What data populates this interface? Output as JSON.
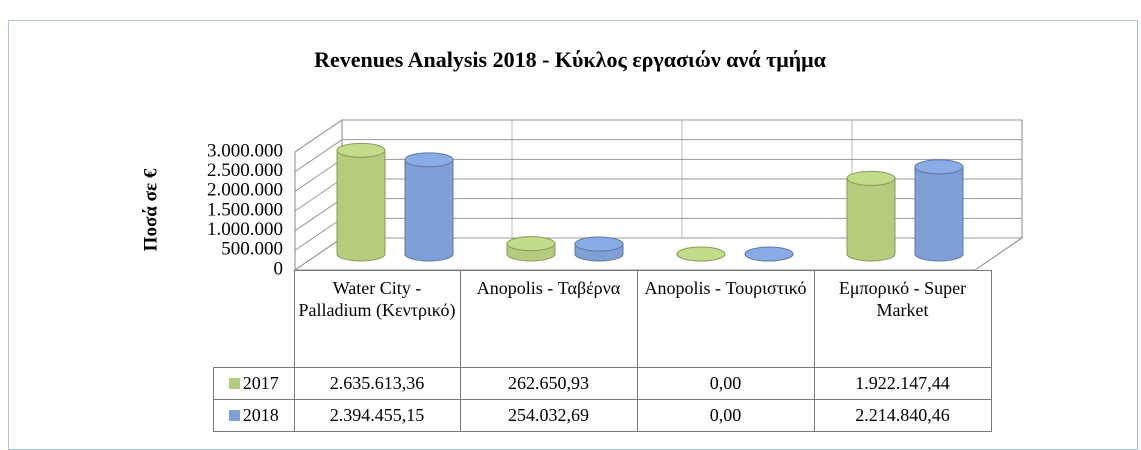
{
  "chart_data": {
    "type": "bar",
    "title": "Revenues Analysis 2018 - Κύκλος εργασιών ανά τμήμα",
    "ylabel": "Ποσά σε €",
    "categories": [
      "Water City - Palladium (Κεντρικό)",
      "Anopolis - Ταβέρνα",
      "Anopolis - Τουριστικό",
      "Εμπορικό - Super Market"
    ],
    "series": [
      {
        "name": "2017",
        "color": "#b5cc7f",
        "values": [
          2635613.36,
          262650.93,
          0,
          1922147.44
        ],
        "value_labels": [
          "2.635.613,36",
          "262.650,93",
          "0,00",
          "1.922.147,44"
        ]
      },
      {
        "name": "2018",
        "color": "#7f9fd6",
        "values": [
          2394455.15,
          254032.69,
          0,
          2214840.46
        ],
        "value_labels": [
          "2.394.455,15",
          "254.032,69",
          "0,00",
          "2.214.840,46"
        ]
      }
    ],
    "ylim": [
      0,
      3000000
    ],
    "yticks": [
      0,
      {
        "value": 500000,
        "label": "500.000"
      },
      {
        "value": 1000000,
        "label": "1.000.000"
      },
      {
        "value": 1500000,
        "label": "1.500.000"
      },
      {
        "value": 2000000,
        "label": "2.000.000"
      },
      {
        "value": 2500000,
        "label": "2.500.000"
      },
      {
        "value": 3000000,
        "label": "3.000.000"
      }
    ],
    "grid": true
  }
}
